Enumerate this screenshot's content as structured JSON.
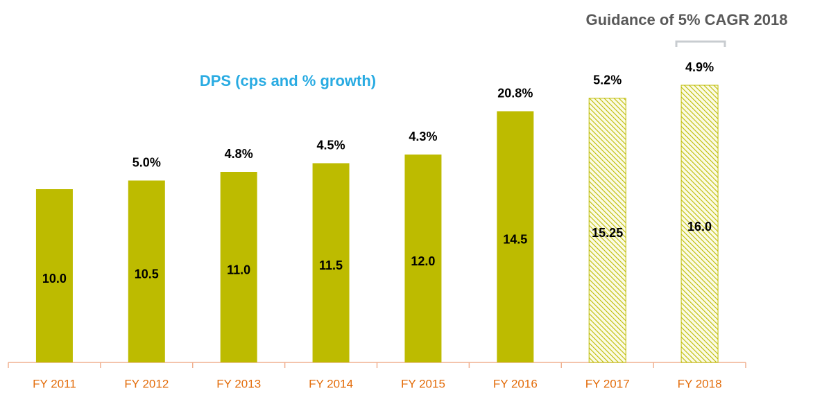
{
  "chart_data": {
    "type": "bar",
    "title": "DPS (cps and % growth)",
    "subtitle": "Guidance of 5% CAGR 2018",
    "categories": [
      "FY 2011",
      "FY 2012",
      "FY 2013",
      "FY 2014",
      "FY 2015",
      "FY 2016",
      "FY 2017",
      "FY 2018"
    ],
    "values": [
      10.0,
      10.5,
      11.0,
      11.5,
      12.0,
      14.5,
      15.25,
      16.0
    ],
    "value_labels": [
      "10.0",
      "10.5",
      "11.0",
      "11.5",
      "12.0",
      "14.5",
      "15.25",
      "16.0"
    ],
    "growth": {
      "values": [
        null,
        5.0,
        4.8,
        4.5,
        4.3,
        20.8,
        5.2,
        4.9
      ],
      "labels": [
        null,
        "5.0%",
        "4.8%",
        "4.5%",
        "4.3%",
        "20.8%",
        "5.2%",
        "4.9%"
      ]
    },
    "patterns": [
      "solid",
      "solid",
      "solid",
      "solid",
      "solid",
      "solid",
      "hatched",
      "hatched"
    ],
    "color": "#bdbb00",
    "ylim": [
      0,
      20
    ]
  }
}
